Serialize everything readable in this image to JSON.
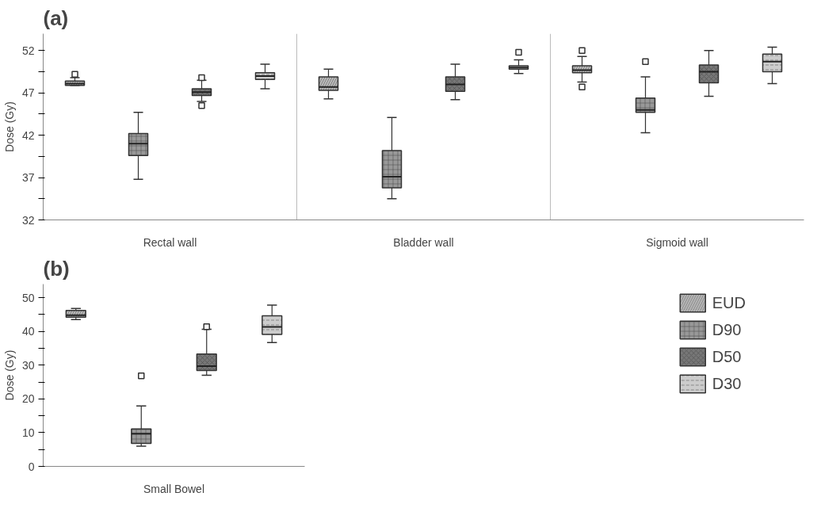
{
  "chart_data": [
    {
      "type": "box",
      "title": "(a)",
      "ylabel": "Dose (Gy)",
      "categories": [
        "Rectal wall",
        "Bladder wall",
        "Sigmoid wall"
      ],
      "ylim": [
        32,
        54
      ],
      "yticks": [
        32,
        {
          "value": 34.5,
          "label": null
        },
        37,
        {
          "value": 39.5,
          "label": null
        },
        42,
        {
          "value": 44.5,
          "label": null
        },
        47,
        {
          "value": 49.5,
          "label": null
        },
        52
      ],
      "grid": "x",
      "legend": false,
      "series": [
        {
          "color": "#bbbbbb",
          "boxes": [
            {
              "low": 47.9,
              "q1": 47.9,
              "median": 48.1,
              "q3": 48.4,
              "high": 48.8,
              "outliers": [
                49.2
              ]
            },
            {
              "low": 46.3,
              "q1": 47.3,
              "median": 47.7,
              "q3": 48.9,
              "high": 49.8
            },
            {
              "low": 48.3,
              "q1": 49.4,
              "median": 49.7,
              "q3": 50.2,
              "high": 51.3,
              "outliers": [
                52.0,
                47.7
              ]
            }
          ]
        },
        {
          "color": "#999999",
          "boxes": [
            {
              "low": 36.8,
              "q1": 39.6,
              "median": 41.0,
              "q3": 42.2,
              "high": 44.7
            },
            {
              "low": 34.5,
              "q1": 35.8,
              "median": 37.1,
              "q3": 40.2,
              "high": 44.1
            },
            {
              "low": 42.3,
              "q1": 44.7,
              "median": 45.0,
              "q3": 46.4,
              "high": 48.9,
              "outliers": [
                50.7
              ]
            }
          ]
        },
        {
          "color": "#777777",
          "boxes": [
            {
              "low": 46.0,
              "q1": 46.7,
              "median": 47.1,
              "q3": 47.5,
              "high": 48.5,
              "outliers": [
                48.8,
                45.5
              ]
            },
            {
              "low": 46.2,
              "q1": 47.2,
              "median": 48.0,
              "q3": 48.9,
              "high": 50.4
            },
            {
              "low": 46.6,
              "q1": 48.2,
              "median": 49.5,
              "q3": 50.3,
              "high": 52.0
            }
          ]
        },
        {
          "color": "#cccccc",
          "boxes": [
            {
              "low": 47.5,
              "q1": 48.6,
              "median": 49.0,
              "q3": 49.4,
              "high": 50.4
            },
            {
              "low": 49.3,
              "q1": 49.8,
              "median": 50.0,
              "q3": 50.2,
              "high": 50.9,
              "outliers": [
                51.8
              ]
            },
            {
              "low": 48.1,
              "q1": 49.5,
              "median": 50.7,
              "q3": 51.6,
              "high": 52.4
            }
          ]
        }
      ]
    },
    {
      "type": "box",
      "title": "(b)",
      "ylabel": "Dose (Gy)",
      "categories": [
        "Small Bowel"
      ],
      "ylim": [
        0,
        54
      ],
      "yticks": [
        0,
        {
          "value": 5,
          "label": null
        },
        10,
        {
          "value": 15,
          "label": null
        },
        20,
        {
          "value": 25,
          "label": null
        },
        30,
        {
          "value": 35,
          "label": null
        },
        40,
        {
          "value": 45,
          "label": null
        },
        50
      ],
      "grid": false,
      "legend": "right",
      "series": [
        {
          "name": "EUD",
          "color": "#bbbbbb",
          "boxes": [
            {
              "low": 43.5,
              "q1": 44.2,
              "median": 44.8,
              "q3": 46.2,
              "high": 46.8
            }
          ]
        },
        {
          "name": "D90",
          "color": "#999999",
          "boxes": [
            {
              "low": 6.0,
              "q1": 6.8,
              "median": 9.7,
              "q3": 11.1,
              "high": 17.9,
              "outliers": [
                26.8
              ]
            }
          ]
        },
        {
          "name": "D50",
          "color": "#777777",
          "boxes": [
            {
              "low": 27.0,
              "q1": 28.4,
              "median": 29.7,
              "q3": 33.3,
              "high": 40.6,
              "outliers": [
                41.4
              ]
            }
          ]
        },
        {
          "name": "D30",
          "color": "#cccccc",
          "boxes": [
            {
              "low": 36.7,
              "q1": 39.1,
              "median": 41.3,
              "q3": 44.6,
              "high": 47.8
            }
          ]
        }
      ]
    }
  ]
}
